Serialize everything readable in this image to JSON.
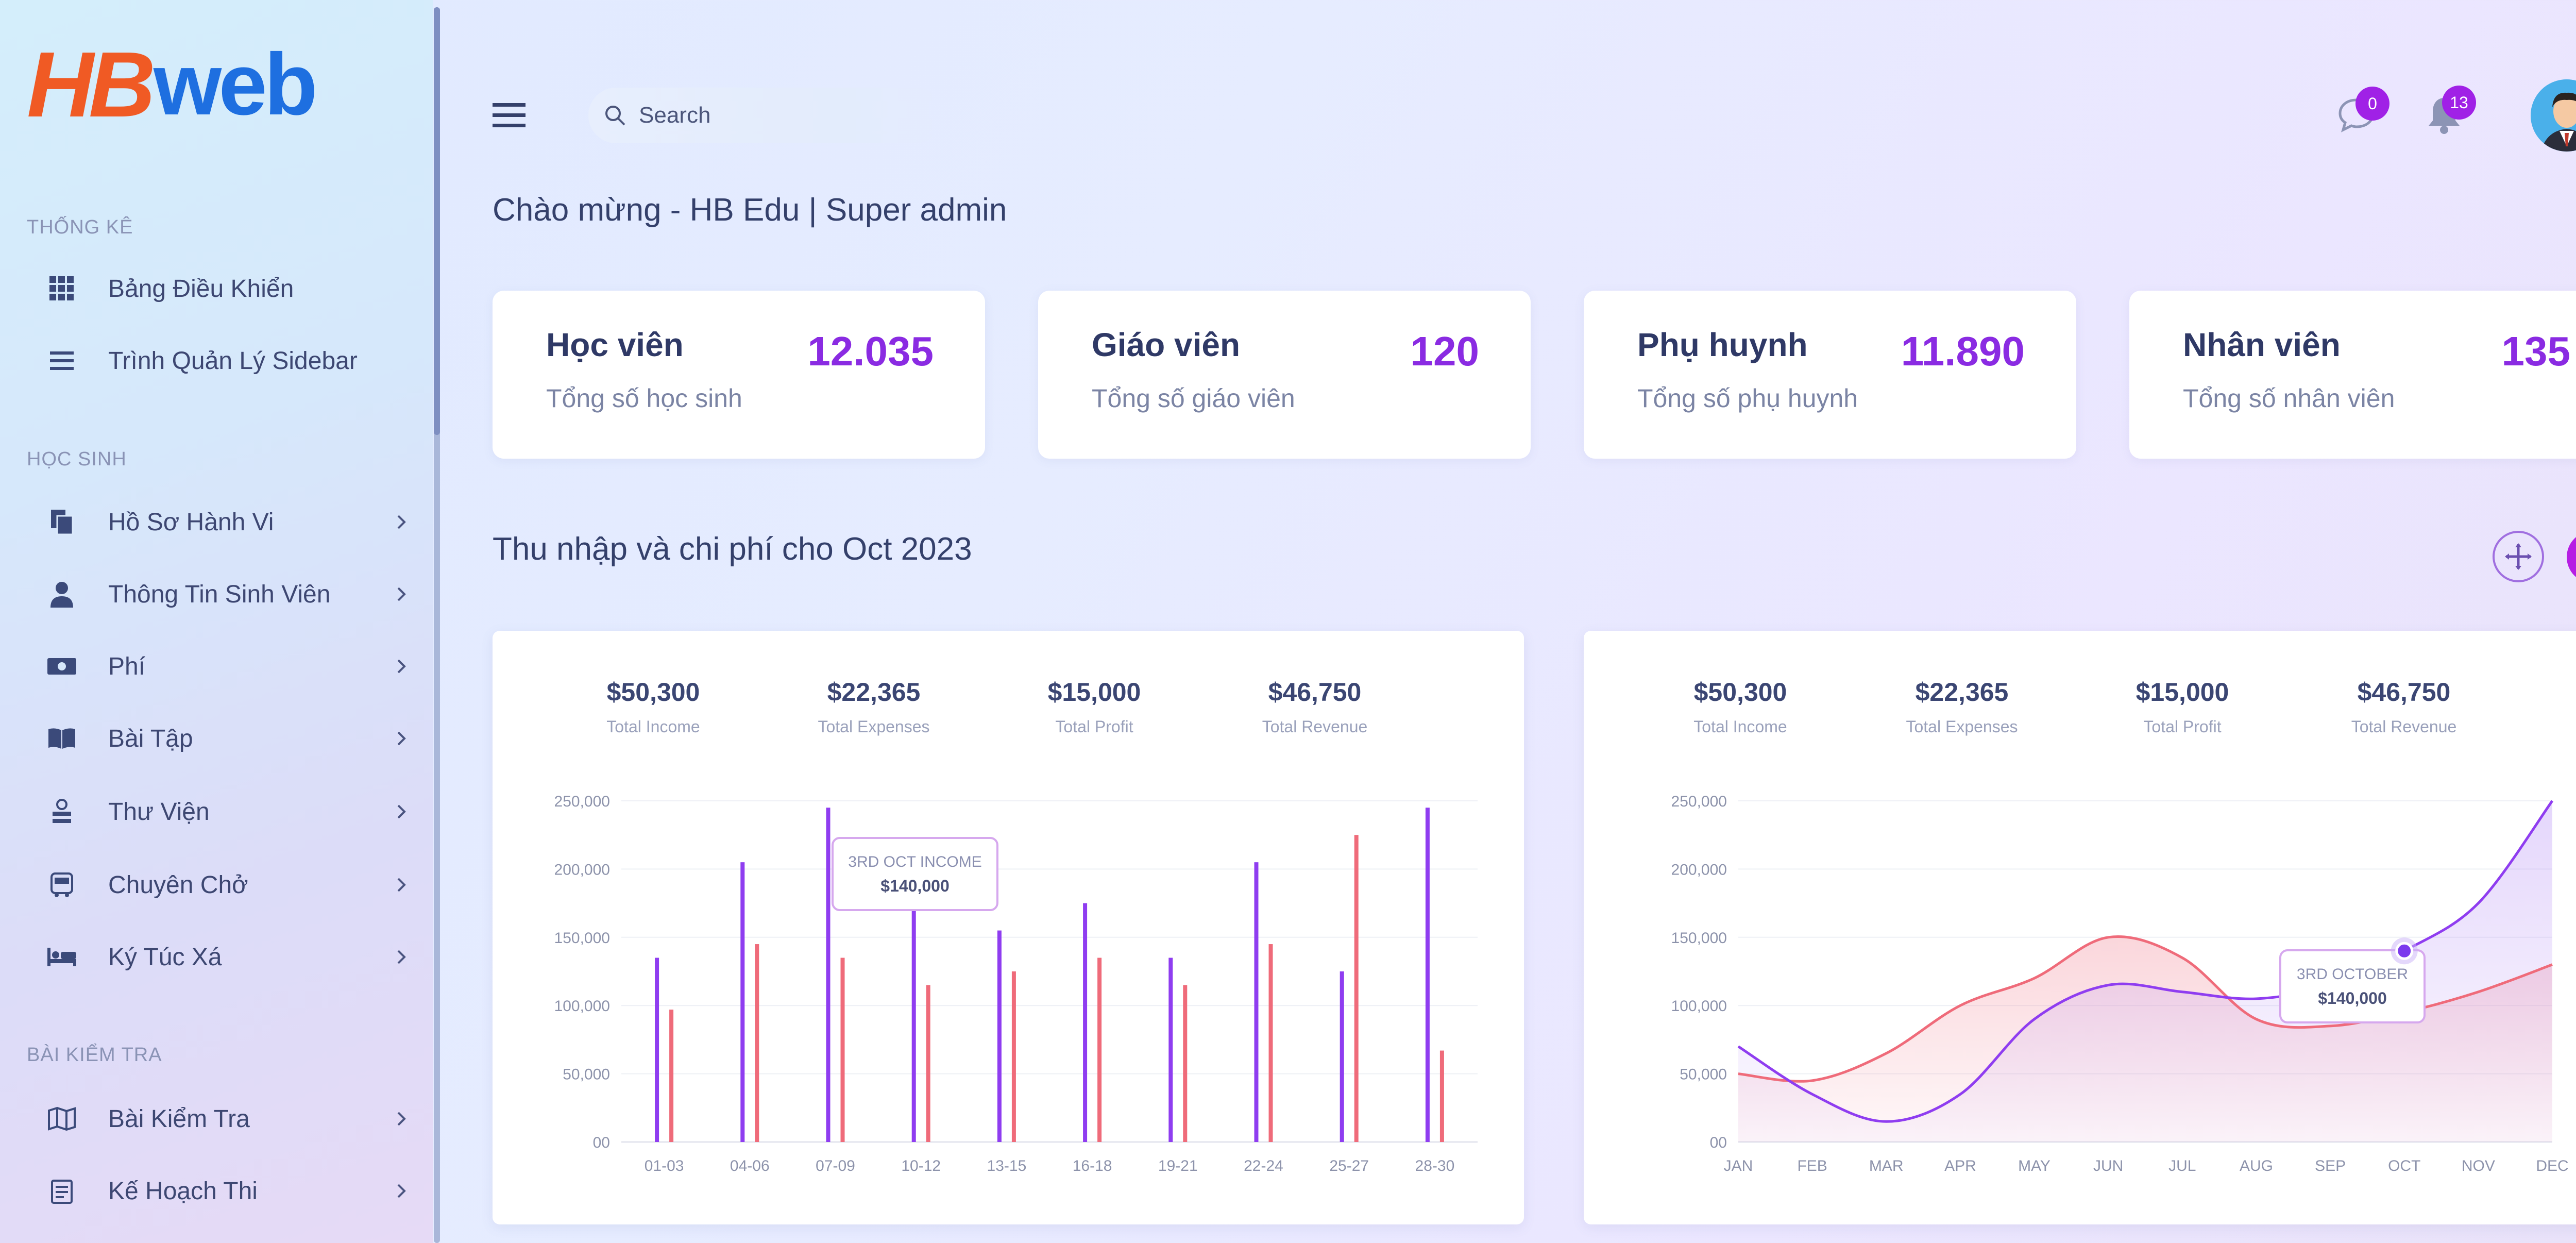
{
  "logo": {
    "part1": "HB",
    "part2": "web"
  },
  "sidebar": {
    "sections": [
      {
        "label": "THỐNG KÊ"
      },
      {
        "label": "HỌC SINH"
      },
      {
        "label": "BÀI KIỂM TRA"
      }
    ],
    "items": [
      {
        "label": "Bảng Điều Khiển",
        "icon": "grid-icon"
      },
      {
        "label": "Trình Quản Lý Sidebar",
        "icon": "list-icon"
      },
      {
        "label": "Hồ Sơ Hành Vi",
        "icon": "documents-icon"
      },
      {
        "label": "Thông Tin Sinh Viên",
        "icon": "student-icon"
      },
      {
        "label": "Phí",
        "icon": "money-icon"
      },
      {
        "label": "Bài Tập",
        "icon": "book-icon"
      },
      {
        "label": "Thư Viện",
        "icon": "library-icon"
      },
      {
        "label": "Chuyên Chở",
        "icon": "bus-icon"
      },
      {
        "label": "Ký Túc Xá",
        "icon": "bed-icon"
      },
      {
        "label": "Bài Kiểm Tra",
        "icon": "map-icon"
      },
      {
        "label": "Kế Hoạch Thi",
        "icon": "calendar-icon"
      }
    ]
  },
  "header": {
    "search_placeholder": "Search",
    "messages_count": "0",
    "notifications_count": "13"
  },
  "welcome": "Chào mừng - HB Edu | Super admin",
  "stats": [
    {
      "title": "Học viên",
      "subtitle": "Tổng số học sinh",
      "value": "12.035"
    },
    {
      "title": "Giáo viên",
      "subtitle": "Tổng số giáo viên",
      "value": "120"
    },
    {
      "title": "Phụ huynh",
      "subtitle": "Tổng số phụ huynh",
      "value": "11.890"
    },
    {
      "title": "Nhân viên",
      "subtitle": "Tổng số nhân viên",
      "value": "135"
    }
  ],
  "chart_heading": "Thu nhập và chi phí cho Oct 2023",
  "colors": {
    "purple": "#8f3df0",
    "red": "#ef6b7a",
    "accent": "#a021e6"
  },
  "chart_data": [
    {
      "type": "bar",
      "kpis": [
        {
          "value": "$50,300",
          "label": "Total Income"
        },
        {
          "value": "$22,365",
          "label": "Total Expenses"
        },
        {
          "value": "$15,000",
          "label": "Total Profit"
        },
        {
          "value": "$46,750",
          "label": "Total Revenue"
        }
      ],
      "categories": [
        "01-03",
        "04-06",
        "07-09",
        "10-12",
        "13-15",
        "16-18",
        "19-21",
        "22-24",
        "25-27",
        "28-30"
      ],
      "series": [
        {
          "values": [
            135000,
            205000,
            245000,
            170000,
            155000,
            175000,
            135000,
            205000,
            125000,
            245000
          ]
        },
        {
          "values": [
            97000,
            145000,
            135000,
            115000,
            125000,
            135000,
            115000,
            145000,
            225000,
            67000
          ]
        }
      ],
      "yticks": [
        "00",
        "50,000",
        "100,000",
        "150,000",
        "200,000",
        "250,000"
      ],
      "ylim": [
        0,
        250000
      ],
      "tooltip": {
        "title": "3RD OCT INCOME",
        "value": "$140,000"
      }
    },
    {
      "type": "area",
      "kpis": [
        {
          "value": "$50,300",
          "label": "Total Income"
        },
        {
          "value": "$22,365",
          "label": "Total Expenses"
        },
        {
          "value": "$15,000",
          "label": "Total Profit"
        },
        {
          "value": "$46,750",
          "label": "Total Revenue"
        }
      ],
      "categories": [
        "JAN",
        "FEB",
        "MAR",
        "APR",
        "MAY",
        "JUN",
        "JUL",
        "AUG",
        "SEP",
        "OCT",
        "NOV",
        "DEC"
      ],
      "series": [
        {
          "values": [
            70000,
            35000,
            15000,
            35000,
            90000,
            115000,
            110000,
            105000,
            115000,
            140000,
            175000,
            250000
          ]
        },
        {
          "values": [
            50000,
            45000,
            65000,
            100000,
            120000,
            150000,
            135000,
            90000,
            85000,
            95000,
            110000,
            130000
          ]
        }
      ],
      "yticks": [
        "00",
        "50,000",
        "100,000",
        "150,000",
        "200,000",
        "250,000"
      ],
      "ylim": [
        0,
        250000
      ],
      "tooltip": {
        "title": "3RD OCTOBER",
        "value": "$140,000"
      }
    }
  ]
}
